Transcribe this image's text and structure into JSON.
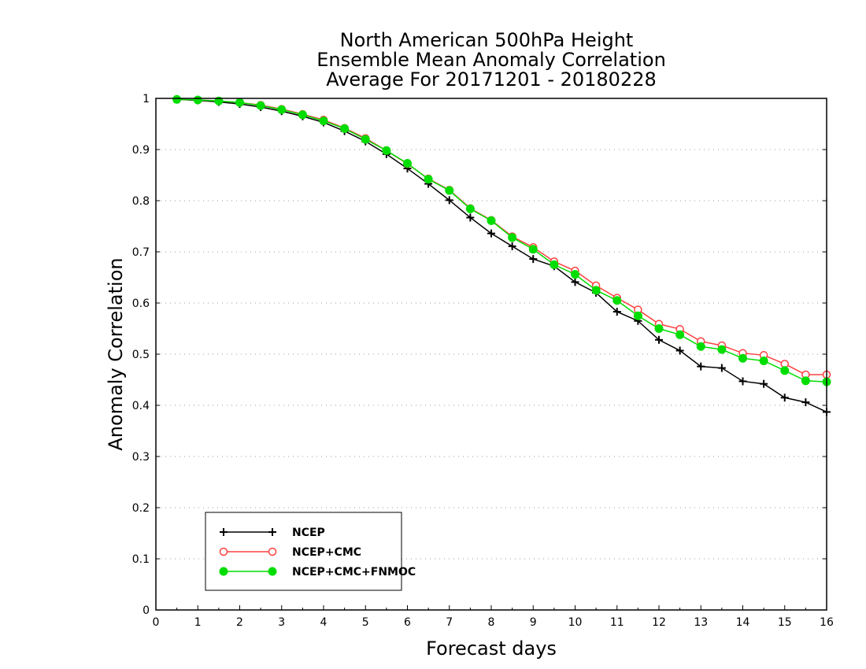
{
  "chart_data": {
    "type": "line",
    "title": [
      "North American 500hPa Height",
      "Ensemble Mean Anomaly Correlation",
      "Average For 20171201 - 20180228"
    ],
    "xlabel": "Forecast days",
    "ylabel": "Anomaly Correlation",
    "xlim": [
      0,
      16
    ],
    "ylim": [
      0,
      1
    ],
    "x_ticks": [
      "0",
      "1",
      "2",
      "3",
      "4",
      "5",
      "6",
      "7",
      "8",
      "9",
      "10",
      "11",
      "12",
      "13",
      "14",
      "15",
      "16"
    ],
    "y_ticks": [
      "0",
      "0.1",
      "0.2",
      "0.3",
      "0.4",
      "0.5",
      "0.6",
      "0.7",
      "0.8",
      "0.9",
      "1"
    ],
    "grid": "horizontal dotted",
    "legend_position": "bottom-left",
    "x": [
      0.5,
      1,
      1.5,
      2,
      2.5,
      3,
      3.5,
      4,
      4.5,
      5,
      5.5,
      6,
      6.5,
      7,
      7.5,
      8,
      8.5,
      9,
      9.5,
      10,
      10.5,
      11,
      11.5,
      12,
      12.5,
      13,
      13.5,
      14,
      14.5,
      15,
      15.5,
      16
    ],
    "series": [
      {
        "name": "NCEP",
        "color": "#000000",
        "marker": "plus",
        "values": [
          0.998,
          0.996,
          0.993,
          0.989,
          0.983,
          0.975,
          0.965,
          0.953,
          0.936,
          0.916,
          0.891,
          0.863,
          0.833,
          0.801,
          0.767,
          0.736,
          0.711,
          0.686,
          0.672,
          0.641,
          0.62,
          0.583,
          0.565,
          0.528,
          0.507,
          0.476,
          0.473,
          0.447,
          0.442,
          0.415,
          0.406,
          0.387
        ]
      },
      {
        "name": "NCEP+CMC",
        "color": "#ff4040",
        "marker": "open-circle",
        "values": [
          0.998,
          0.997,
          0.995,
          0.992,
          0.987,
          0.979,
          0.969,
          0.958,
          0.942,
          0.922,
          0.898,
          0.872,
          0.843,
          0.821,
          0.785,
          0.762,
          0.73,
          0.709,
          0.681,
          0.663,
          0.634,
          0.61,
          0.587,
          0.559,
          0.549,
          0.525,
          0.517,
          0.502,
          0.498,
          0.481,
          0.46,
          0.46
        ]
      },
      {
        "name": "NCEP+CMC+FNMOC",
        "color": "#00dd00",
        "marker": "filled-circle",
        "values": [
          0.998,
          0.997,
          0.995,
          0.992,
          0.986,
          0.978,
          0.968,
          0.956,
          0.941,
          0.92,
          0.898,
          0.873,
          0.842,
          0.82,
          0.784,
          0.761,
          0.728,
          0.705,
          0.675,
          0.656,
          0.625,
          0.605,
          0.575,
          0.55,
          0.538,
          0.515,
          0.509,
          0.492,
          0.487,
          0.468,
          0.448,
          0.446
        ]
      }
    ]
  }
}
